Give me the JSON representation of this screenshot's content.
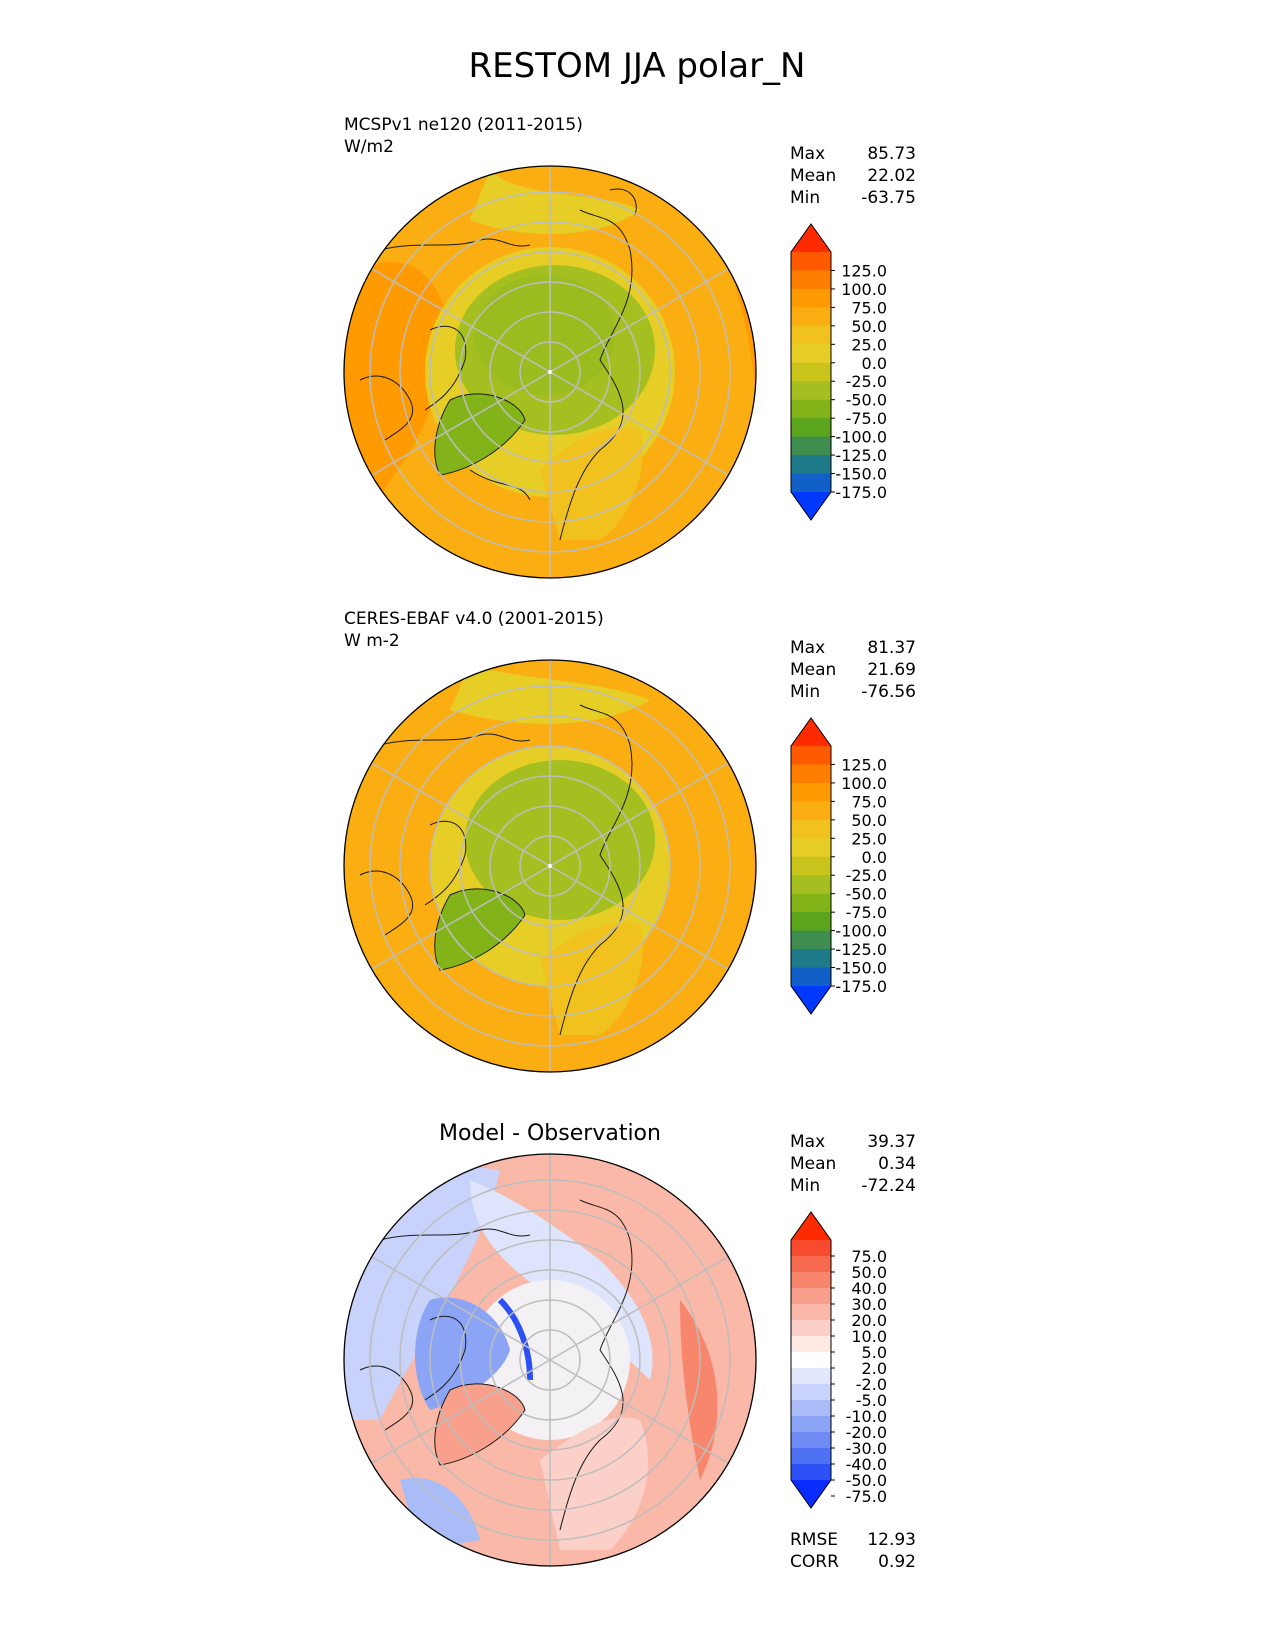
{
  "title": "RESTOM JJA polar_N",
  "panels": [
    {
      "id": "model",
      "title_line1": "MCSPv1 ne120 (2011-2015)",
      "title_line2": "W/m2",
      "center_title": "",
      "stats": [
        {
          "label": "Max",
          "value": "85.73"
        },
        {
          "label": "Mean",
          "value": "22.02"
        },
        {
          "label": "Min",
          "value": "-63.75"
        }
      ],
      "colorbar_labels": [
        "125.0",
        "100.0",
        "75.0",
        "50.0",
        "25.0",
        "0.0",
        "-25.0",
        "-50.0",
        "-75.0",
        "-100.0",
        "-125.0",
        "-150.0",
        "-175.0"
      ]
    },
    {
      "id": "obs",
      "title_line1": "CERES-EBAF v4.0 (2001-2015)",
      "title_line2": "W m-2",
      "center_title": "",
      "stats": [
        {
          "label": "Max",
          "value": "81.37"
        },
        {
          "label": "Mean",
          "value": "21.69"
        },
        {
          "label": "Min",
          "value": "-76.56"
        }
      ],
      "colorbar_labels": [
        "125.0",
        "100.0",
        "75.0",
        "50.0",
        "25.0",
        "0.0",
        "-25.0",
        "-50.0",
        "-75.0",
        "-100.0",
        "-125.0",
        "-150.0",
        "-175.0"
      ]
    },
    {
      "id": "diff",
      "title_line1": "",
      "title_line2": "",
      "center_title": "Model - Observation",
      "stats": [
        {
          "label": "Max",
          "value": "39.37"
        },
        {
          "label": "Mean",
          "value": "0.34"
        },
        {
          "label": "Min",
          "value": "-72.24"
        }
      ],
      "colorbar_labels": [
        "75.0",
        "50.0",
        "40.0",
        "30.0",
        "20.0",
        "10.0",
        "5.0",
        "2.0",
        "-2.0",
        "-5.0",
        "-10.0",
        "-20.0",
        "-30.0",
        "-40.0",
        "-50.0",
        "-75.0"
      ],
      "extra_stats": [
        {
          "label": "RMSE",
          "value": "12.93"
        },
        {
          "label": "CORR",
          "value": "0.92"
        }
      ]
    }
  ],
  "colors": {
    "main_scale": [
      "#ff2a00",
      "#ff5a00",
      "#ff7e00",
      "#ff9a00",
      "#fbae12",
      "#f1c21e",
      "#e6ce26",
      "#c8c41c",
      "#a6bf20",
      "#82b41a",
      "#5aa51c",
      "#3f8e50",
      "#1f7a8a",
      "#1060c8",
      "#0038ff"
    ],
    "diff_scale": [
      "#ff2a00",
      "#f84a2e",
      "#f76a50",
      "#f7866c",
      "#f8a08c",
      "#f9b8a8",
      "#fbd0c8",
      "#fde8e2",
      "#ffffff",
      "#e2e8fb",
      "#c8d2fa",
      "#aabcf8",
      "#8ca4f6",
      "#6e8cf4",
      "#4e70f2",
      "#2a50f6",
      "#0a2cff"
    ]
  },
  "chart_data": [
    {
      "type": "heatmap",
      "projection": "north polar stereographic",
      "title": "MCSPv1 ne120 (2011-2015)",
      "units": "W/m2",
      "levels": [
        -175,
        -150,
        -125,
        -100,
        -75,
        -50,
        -25,
        0,
        25,
        50,
        75,
        100,
        125
      ],
      "colorbar_extend": "both",
      "stats": {
        "max": 85.73,
        "mean": 22.02,
        "min": -63.75
      }
    },
    {
      "type": "heatmap",
      "projection": "north polar stereographic",
      "title": "CERES-EBAF v4.0 (2001-2015)",
      "units": "W m-2",
      "levels": [
        -175,
        -150,
        -125,
        -100,
        -75,
        -50,
        -25,
        0,
        25,
        50,
        75,
        100,
        125
      ],
      "colorbar_extend": "both",
      "stats": {
        "max": 81.37,
        "mean": 21.69,
        "min": -76.56
      }
    },
    {
      "type": "heatmap",
      "projection": "north polar stereographic",
      "title": "Model - Observation",
      "levels": [
        -75,
        -50,
        -40,
        -30,
        -20,
        -10,
        -5,
        -2,
        2,
        5,
        10,
        20,
        30,
        40,
        50,
        75
      ],
      "colorbar_extend": "both",
      "stats": {
        "max": 39.37,
        "mean": 0.34,
        "min": -72.24,
        "rmse": 12.93,
        "corr": 0.92
      }
    }
  ]
}
